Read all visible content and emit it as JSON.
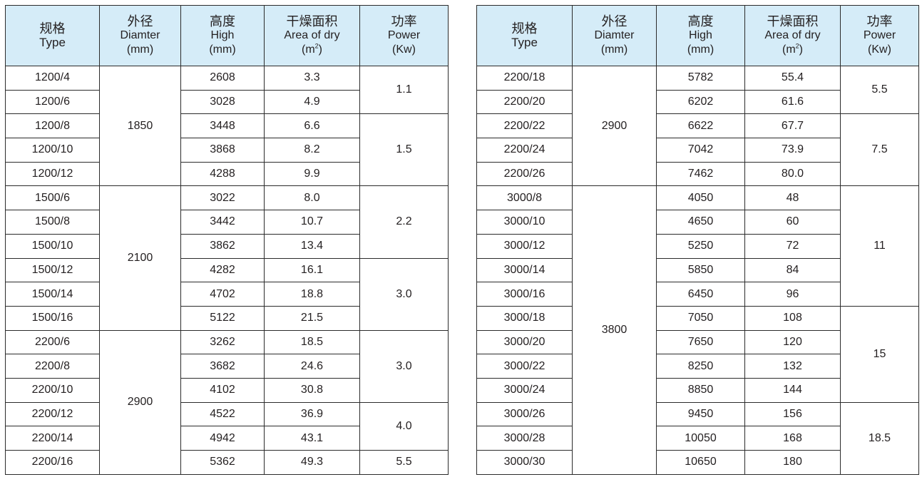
{
  "headers": {
    "type": {
      "zh": "规格",
      "en": "Type"
    },
    "diameter": {
      "zh": "外径",
      "en": "Diamter",
      "unit": "(mm)"
    },
    "height": {
      "zh": "高度",
      "en": "High",
      "unit": "(mm)"
    },
    "area": {
      "zh": "干燥面积",
      "en": "Area of dry",
      "unit_pre": "(m",
      "unit_sup": "2",
      "unit_post": ")"
    },
    "power": {
      "zh": "功率",
      "en": "Power",
      "unit": "(Kw)"
    }
  },
  "left": {
    "types": [
      "1200/4",
      "1200/6",
      "1200/8",
      "1200/10",
      "1200/12",
      "1500/6",
      "1500/8",
      "1500/10",
      "1500/12",
      "1500/14",
      "1500/16",
      "2200/6",
      "2200/8",
      "2200/10",
      "2200/12",
      "2200/14",
      "2200/16"
    ],
    "heights": [
      "2608",
      "3028",
      "3448",
      "3868",
      "4288",
      "3022",
      "3442",
      "3862",
      "4282",
      "4702",
      "5122",
      "3262",
      "3682",
      "4102",
      "4522",
      "4942",
      "5362"
    ],
    "areas": [
      "3.3",
      "4.9",
      "6.6",
      "8.2",
      "9.9",
      "8.0",
      "10.7",
      "13.4",
      "16.1",
      "18.8",
      "21.5",
      "18.5",
      "24.6",
      "30.8",
      "36.9",
      "43.1",
      "49.3"
    ],
    "diameters": [
      "1850",
      "2100",
      "2900"
    ],
    "powers": [
      "1.1",
      "1.5",
      "2.2",
      "3.0",
      "3.0",
      "4.0",
      "5.5"
    ]
  },
  "right": {
    "types": [
      "2200/18",
      "2200/20",
      "2200/22",
      "2200/24",
      "2200/26",
      "3000/8",
      "3000/10",
      "3000/12",
      "3000/14",
      "3000/16",
      "3000/18",
      "3000/20",
      "3000/22",
      "3000/24",
      "3000/26",
      "3000/28",
      "3000/30"
    ],
    "heights": [
      "5782",
      "6202",
      "6622",
      "7042",
      "7462",
      "4050",
      "4650",
      "5250",
      "5850",
      "6450",
      "7050",
      "7650",
      "8250",
      "8850",
      "9450",
      "10050",
      "10650"
    ],
    "areas": [
      "55.4",
      "61.6",
      "67.7",
      "73.9",
      "80.0",
      "48",
      "60",
      "72",
      "84",
      "96",
      "108",
      "120",
      "132",
      "144",
      "156",
      "168",
      "180"
    ],
    "diameters": [
      "2900",
      "3800"
    ],
    "powers": [
      "5.5",
      "7.5",
      "11",
      "15",
      "18.5"
    ]
  }
}
